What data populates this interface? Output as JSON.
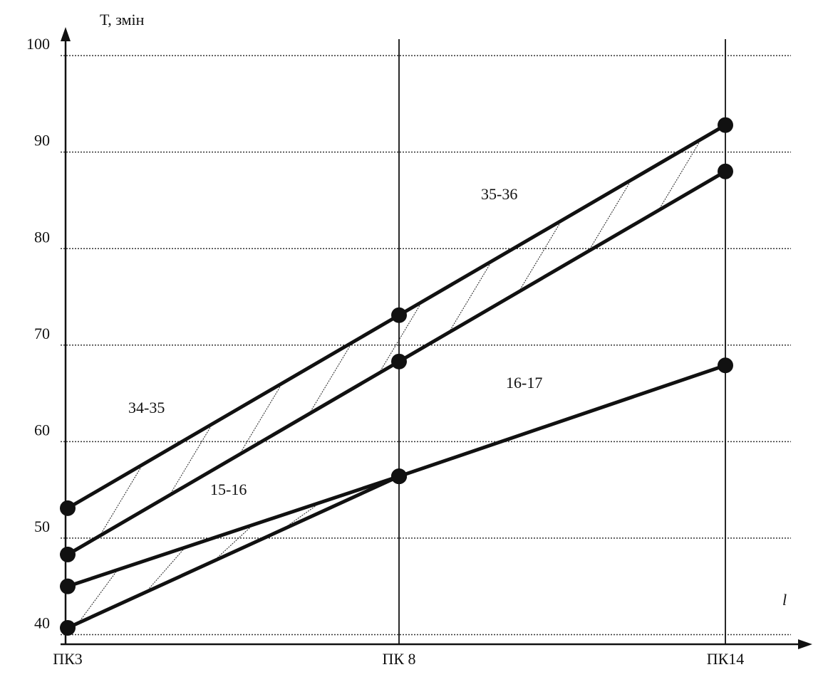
{
  "chart_data": {
    "type": "line",
    "y_label": "Т, змін",
    "x_label": "l",
    "categories": [
      "ПК3",
      "ПК 8",
      "ПК14"
    ],
    "series": [
      {
        "color": "#111111",
        "values": [
          53.1,
          73.1,
          92.8
        ]
      },
      {
        "color": "#111111",
        "values": [
          48.3,
          68.3,
          88.0
        ]
      },
      {
        "color": "#111111",
        "values": [
          45.0,
          56.4,
          null
        ]
      },
      {
        "color": "#111111",
        "values": [
          40.7,
          56.4,
          null
        ]
      },
      {
        "color": "#111111",
        "values": [
          null,
          56.4,
          67.9
        ]
      }
    ],
    "annotations": [
      "34-35",
      "35-36",
      "15-16",
      "16-17"
    ],
    "ylim": [
      39,
      102
    ],
    "yticks": [
      40,
      50,
      60,
      70,
      80,
      90,
      100
    ],
    "grid": true
  }
}
